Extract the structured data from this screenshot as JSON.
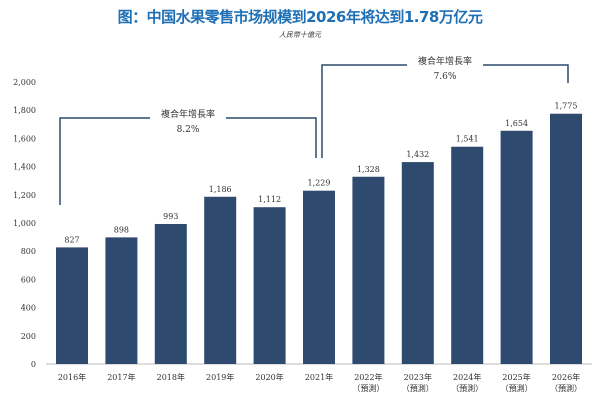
{
  "chart_data": {
    "type": "bar",
    "title": "图：中国水果零售市场规模到2026年将达到1.78万亿元",
    "subtitle": "人民幣十億元",
    "categories": [
      "2016年",
      "2017年",
      "2018年",
      "2019年",
      "2020年",
      "2021年",
      "2022年\n（預測）",
      "2023年\n（預測）",
      "2024年\n（預測）",
      "2025年\n（預測）",
      "2026年\n（預測）"
    ],
    "values": [
      827,
      898,
      993,
      1186,
      1112,
      1229,
      1328,
      1432,
      1541,
      1654,
      1775
    ],
    "data_labels": [
      "827",
      "898",
      "993",
      "1,186",
      "1,112",
      "1,229",
      "1,328",
      "1,432",
      "1,541",
      "1,654",
      "1,775"
    ],
    "yticks": [
      "0",
      "200",
      "400",
      "600",
      "800",
      "1,000",
      "1,200",
      "1,400",
      "1,600",
      "1,800",
      "2,000"
    ],
    "ylim": [
      0,
      2000
    ],
    "grid": false,
    "bar_color": "#2e4a6f",
    "title_color": "#1f6fb5",
    "annotations": [
      {
        "label": "複合年增長率",
        "value": "8.2%",
        "from": "2016年",
        "to": "2021年"
      },
      {
        "label": "複合年增長率",
        "value": "7.6%",
        "from": "2021年",
        "to": "2026年"
      }
    ]
  }
}
